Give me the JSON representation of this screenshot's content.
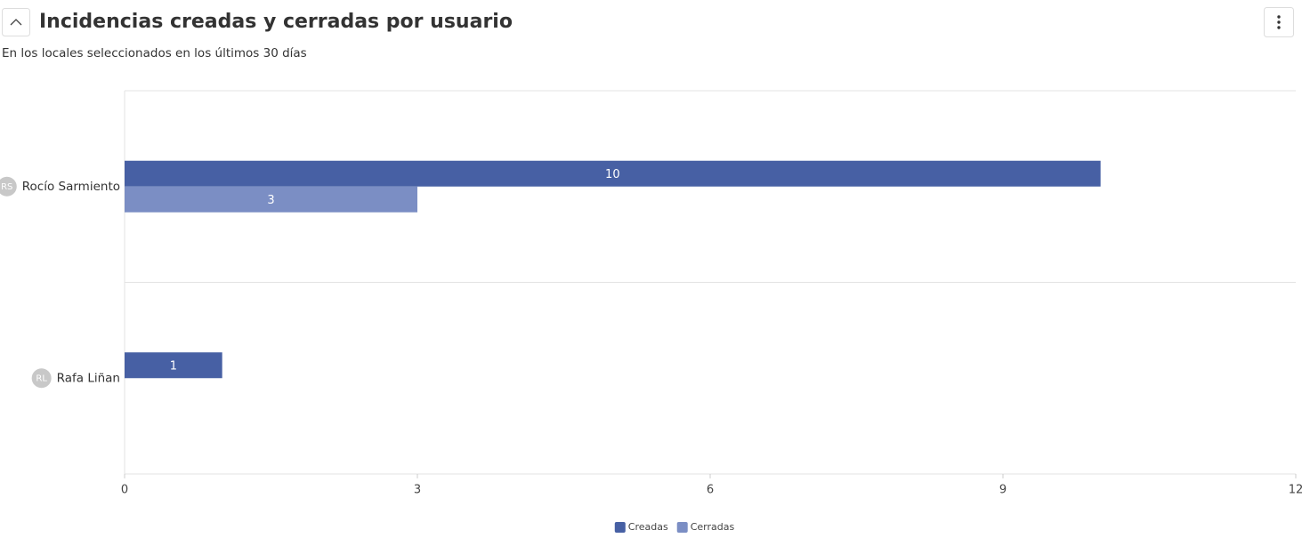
{
  "header": {
    "title": "Incidencias creadas y cerradas por usuario",
    "subtitle": "En los locales seleccionados en los últimos 30 días"
  },
  "chart_data": {
    "type": "bar",
    "orientation": "horizontal",
    "categories": [
      "Rocío Sarmiento",
      "Rafa Liñan"
    ],
    "avatars": [
      "RS",
      "RL"
    ],
    "series": [
      {
        "name": "Creadas",
        "color": "#4760a4",
        "values": [
          10,
          1
        ]
      },
      {
        "name": "Cerradas",
        "color": "#7b8ec4",
        "values": [
          3,
          null
        ]
      }
    ],
    "xlim": [
      0,
      12
    ],
    "xticks": [
      0,
      3,
      6,
      9,
      12
    ],
    "legend": "bottom"
  }
}
